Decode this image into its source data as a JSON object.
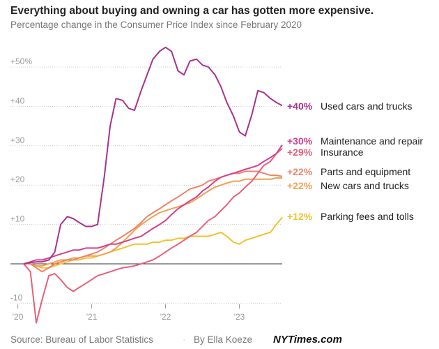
{
  "chart_data": {
    "type": "line",
    "title": "Everything about buying and owning a car has gotten more expensive.",
    "subtitle": "Percentage change in the Consumer Price Index since February 2020",
    "source": "Source: Bureau of Labor Statistics",
    "byline": "By Ella Koeze",
    "brand": "NYTimes.com",
    "x": [
      2020.08,
      2020.17,
      2020.25,
      2020.33,
      2020.42,
      2020.5,
      2020.58,
      2020.67,
      2020.75,
      2020.83,
      2020.92,
      2021,
      2021.08,
      2021.17,
      2021.25,
      2021.33,
      2021.42,
      2021.5,
      2021.58,
      2021.67,
      2021.75,
      2021.83,
      2021.92,
      2022,
      2022.08,
      2022.17,
      2022.25,
      2022.33,
      2022.42,
      2022.5,
      2022.58,
      2022.67,
      2022.75,
      2022.83,
      2022.92,
      2023,
      2023.08,
      2023.17,
      2023.25,
      2023.33,
      2023.42,
      2023.5,
      2023.58
    ],
    "xlim": [
      2019.9,
      2023.58
    ],
    "xticks": [
      {
        "value": 2020,
        "label": "'20"
      },
      {
        "value": 2021,
        "label": "'21"
      },
      {
        "value": 2022,
        "label": "'22"
      },
      {
        "value": 2023,
        "label": "'23"
      }
    ],
    "ylim": [
      -15,
      57
    ],
    "yticks": [
      {
        "value": -10,
        "label": "-10"
      },
      {
        "value": 10,
        "label": "+10"
      },
      {
        "value": 20,
        "label": "+20"
      },
      {
        "value": 30,
        "label": "+30"
      },
      {
        "value": 40,
        "label": "+40"
      },
      {
        "value": 50,
        "label": "+50%"
      }
    ],
    "grid": true,
    "series": [
      {
        "name": "Used cars and trucks",
        "end_label": "+40%",
        "color": "#a8328f",
        "values": [
          0,
          0.3,
          0.5,
          0.5,
          1,
          3,
          10,
          12,
          11.5,
          10.5,
          9.5,
          9.5,
          10,
          22,
          35,
          42,
          41.5,
          39.5,
          39,
          44,
          48,
          52,
          54,
          55,
          54,
          49,
          48,
          51.5,
          52,
          50.5,
          50,
          48,
          45,
          41,
          37.5,
          33.5,
          32.5,
          38,
          44,
          43.5,
          42,
          41,
          40.2
        ]
      },
      {
        "name": "Maintenance and repair",
        "end_label": "+30%",
        "color": "#d6408a",
        "values": [
          0,
          0.5,
          1,
          1,
          1.5,
          2,
          2.5,
          3,
          3.5,
          3.5,
          4,
          4,
          4,
          4.5,
          5,
          5,
          5.5,
          6,
          6.5,
          7,
          8,
          9,
          10,
          11,
          12.5,
          14,
          15,
          16,
          17,
          18.5,
          19.5,
          21,
          22,
          22.5,
          23,
          23.5,
          24,
          24.5,
          25,
          26,
          27,
          28,
          30.2
        ]
      },
      {
        "name": "Insurance",
        "end_label": "+29%",
        "color": "#e8607a",
        "values": [
          0,
          -2,
          -15,
          -9,
          -3,
          -2.5,
          -4,
          -6,
          -7,
          -6,
          -5,
          -4,
          -3,
          -2.5,
          -2,
          -1.5,
          -1,
          -0.8,
          -0.5,
          0,
          0.5,
          1,
          2,
          3,
          4,
          5,
          6,
          7,
          8,
          9.5,
          11,
          12,
          13.5,
          15,
          17,
          18,
          19.5,
          21,
          23,
          25,
          26,
          28,
          29.3
        ]
      },
      {
        "name": "Parts and equipment",
        "end_label": "+22%",
        "color": "#ec8468",
        "values": [
          0,
          0,
          -1,
          -2,
          -1,
          0,
          0.5,
          1,
          1,
          1.5,
          2,
          2.5,
          3,
          4,
          5,
          6,
          7,
          8,
          9,
          10.5,
          12,
          13,
          14,
          15,
          16,
          17,
          18,
          19,
          19.5,
          20,
          21,
          21.5,
          22,
          22.5,
          23,
          23,
          23.5,
          23.5,
          23.5,
          23,
          22.5,
          22.5,
          22.2
        ]
      },
      {
        "name": "New cars and trucks",
        "end_label": "+22%",
        "color": "#f4a050",
        "values": [
          0,
          0,
          -0.5,
          -0.5,
          0,
          0.5,
          1,
          1,
          1.5,
          1.5,
          2,
          2,
          2,
          2.5,
          3,
          4,
          5.5,
          7,
          8.5,
          10,
          11,
          12,
          13,
          13.5,
          14,
          14.5,
          15,
          15.5,
          16.5,
          17.5,
          18.5,
          19.5,
          20,
          20.5,
          21,
          21,
          21.5,
          21.5,
          21.5,
          21.5,
          21.5,
          21.8,
          21.8
        ]
      },
      {
        "name": "Parking fees and tolls",
        "end_label": "+12%",
        "color": "#f2c12e",
        "values": [
          0,
          0,
          -0.5,
          -1,
          -1,
          -0.5,
          0,
          0.5,
          1,
          1,
          1.5,
          1.5,
          2,
          2.5,
          3,
          3.5,
          4,
          4.5,
          5,
          5,
          5,
          5.5,
          5.5,
          6,
          6,
          6.5,
          6.5,
          7,
          7,
          7,
          7,
          7.5,
          8,
          7,
          5.5,
          5,
          6,
          6.5,
          7,
          7.5,
          8,
          10,
          11.8
        ]
      }
    ]
  }
}
